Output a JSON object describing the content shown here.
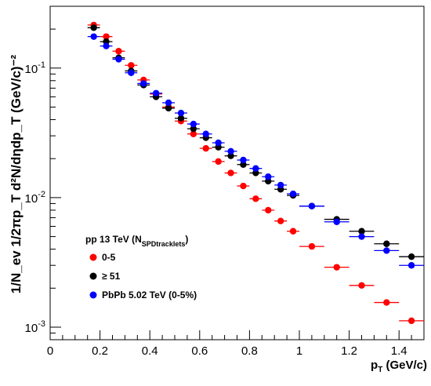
{
  "chart_data": {
    "type": "scatter",
    "y_scale": "log",
    "xlim": [
      0,
      1.5
    ],
    "ylim": [
      0.0008,
      0.3
    ],
    "x_ticks": [
      {
        "v": 0,
        "label": "0"
      },
      {
        "v": 0.2,
        "label": "0.2"
      },
      {
        "v": 0.4,
        "label": "0.4"
      },
      {
        "v": 0.6,
        "label": "0.6"
      },
      {
        "v": 0.8,
        "label": "0.8"
      },
      {
        "v": 1.0,
        "label": "1"
      },
      {
        "v": 1.2,
        "label": "1.2"
      },
      {
        "v": 1.4,
        "label": "1.4"
      }
    ],
    "y_ticks": [
      {
        "v": 0.001,
        "base": "10",
        "exp": "-3"
      },
      {
        "v": 0.01,
        "base": "10",
        "exp": "-2"
      },
      {
        "v": 0.1,
        "base": "10",
        "exp": "-1"
      }
    ],
    "xlabel": {
      "main": "p",
      "sub": "T",
      "rest": " (GeV/c)"
    },
    "ylabel": "1/N_ev  1/2πp_T d²N/dηdp_T (GeV/c)⁻²",
    "legend": {
      "title": "pp 13 TeV (N",
      "title_sub": "SPDtracklets",
      "title_close": ")",
      "placement": "bottom-left"
    },
    "series": [
      {
        "name": "0-5",
        "color": "#ff0000",
        "points": [
          {
            "x": 0.175,
            "y": 0.215,
            "xerr": 0.025
          },
          {
            "x": 0.225,
            "y": 0.175,
            "xerr": 0.025
          },
          {
            "x": 0.275,
            "y": 0.135,
            "xerr": 0.025
          },
          {
            "x": 0.325,
            "y": 0.105,
            "xerr": 0.025
          },
          {
            "x": 0.375,
            "y": 0.081,
            "xerr": 0.025
          },
          {
            "x": 0.425,
            "y": 0.063,
            "xerr": 0.025
          },
          {
            "x": 0.475,
            "y": 0.05,
            "xerr": 0.025
          },
          {
            "x": 0.525,
            "y": 0.039,
            "xerr": 0.025
          },
          {
            "x": 0.575,
            "y": 0.031,
            "xerr": 0.025
          },
          {
            "x": 0.625,
            "y": 0.024,
            "xerr": 0.025
          },
          {
            "x": 0.675,
            "y": 0.019,
            "xerr": 0.025
          },
          {
            "x": 0.725,
            "y": 0.0155,
            "xerr": 0.025
          },
          {
            "x": 0.775,
            "y": 0.0123,
            "xerr": 0.025
          },
          {
            "x": 0.825,
            "y": 0.0098,
            "xerr": 0.025
          },
          {
            "x": 0.875,
            "y": 0.008,
            "xerr": 0.025
          },
          {
            "x": 0.925,
            "y": 0.0066,
            "xerr": 0.025
          },
          {
            "x": 0.975,
            "y": 0.0055,
            "xerr": 0.025
          },
          {
            "x": 1.05,
            "y": 0.0042,
            "xerr": 0.05
          },
          {
            "x": 1.15,
            "y": 0.0029,
            "xerr": 0.05
          },
          {
            "x": 1.25,
            "y": 0.0021,
            "xerr": 0.05
          },
          {
            "x": 1.35,
            "y": 0.00155,
            "xerr": 0.05
          },
          {
            "x": 1.45,
            "y": 0.00112,
            "xerr": 0.05
          }
        ]
      },
      {
        "name": "≥ 51",
        "color": "#000000",
        "points": [
          {
            "x": 0.175,
            "y": 0.205,
            "xerr": 0.025
          },
          {
            "x": 0.225,
            "y": 0.16,
            "xerr": 0.025
          },
          {
            "x": 0.275,
            "y": 0.12,
            "xerr": 0.025
          },
          {
            "x": 0.325,
            "y": 0.095,
            "xerr": 0.025
          },
          {
            "x": 0.375,
            "y": 0.074,
            "xerr": 0.025
          },
          {
            "x": 0.425,
            "y": 0.06,
            "xerr": 0.025
          },
          {
            "x": 0.475,
            "y": 0.049,
            "xerr": 0.025
          },
          {
            "x": 0.525,
            "y": 0.041,
            "xerr": 0.025
          },
          {
            "x": 0.575,
            "y": 0.034,
            "xerr": 0.025
          },
          {
            "x": 0.625,
            "y": 0.029,
            "xerr": 0.025
          },
          {
            "x": 0.675,
            "y": 0.0245,
            "xerr": 0.025
          },
          {
            "x": 0.725,
            "y": 0.021,
            "xerr": 0.025
          },
          {
            "x": 0.775,
            "y": 0.018,
            "xerr": 0.025
          },
          {
            "x": 0.825,
            "y": 0.0155,
            "xerr": 0.025
          },
          {
            "x": 0.875,
            "y": 0.0134,
            "xerr": 0.025
          },
          {
            "x": 0.925,
            "y": 0.0116,
            "xerr": 0.025
          },
          {
            "x": 0.975,
            "y": 0.0104,
            "xerr": 0.025
          },
          {
            "x": 1.05,
            "y": 0.0086,
            "xerr": 0.05
          },
          {
            "x": 1.15,
            "y": 0.0068,
            "xerr": 0.05
          },
          {
            "x": 1.25,
            "y": 0.0055,
            "xerr": 0.05
          },
          {
            "x": 1.35,
            "y": 0.0044,
            "xerr": 0.05
          },
          {
            "x": 1.45,
            "y": 0.0035,
            "xerr": 0.05
          }
        ]
      },
      {
        "name": "PbPb 5.02 TeV (0-5%)",
        "color": "#0000ff",
        "points": [
          {
            "x": 0.175,
            "y": 0.175,
            "xerr": 0.025
          },
          {
            "x": 0.225,
            "y": 0.148,
            "xerr": 0.025
          },
          {
            "x": 0.275,
            "y": 0.117,
            "xerr": 0.025
          },
          {
            "x": 0.325,
            "y": 0.092,
            "xerr": 0.025
          },
          {
            "x": 0.375,
            "y": 0.076,
            "xerr": 0.025
          },
          {
            "x": 0.425,
            "y": 0.064,
            "xerr": 0.025
          },
          {
            "x": 0.475,
            "y": 0.054,
            "xerr": 0.025
          },
          {
            "x": 0.525,
            "y": 0.045,
            "xerr": 0.025
          },
          {
            "x": 0.575,
            "y": 0.037,
            "xerr": 0.025
          },
          {
            "x": 0.625,
            "y": 0.031,
            "xerr": 0.025
          },
          {
            "x": 0.675,
            "y": 0.0265,
            "xerr": 0.025
          },
          {
            "x": 0.725,
            "y": 0.0228,
            "xerr": 0.025
          },
          {
            "x": 0.775,
            "y": 0.0195,
            "xerr": 0.025
          },
          {
            "x": 0.825,
            "y": 0.0168,
            "xerr": 0.025
          },
          {
            "x": 0.875,
            "y": 0.0145,
            "xerr": 0.025
          },
          {
            "x": 0.925,
            "y": 0.0125,
            "xerr": 0.025
          },
          {
            "x": 0.975,
            "y": 0.0107,
            "xerr": 0.025
          },
          {
            "x": 1.05,
            "y": 0.0086,
            "xerr": 0.05
          },
          {
            "x": 1.15,
            "y": 0.0065,
            "xerr": 0.05
          },
          {
            "x": 1.25,
            "y": 0.005,
            "xerr": 0.05
          },
          {
            "x": 1.35,
            "y": 0.0039,
            "xerr": 0.05
          },
          {
            "x": 1.45,
            "y": 0.003,
            "xerr": 0.05
          }
        ]
      }
    ]
  }
}
